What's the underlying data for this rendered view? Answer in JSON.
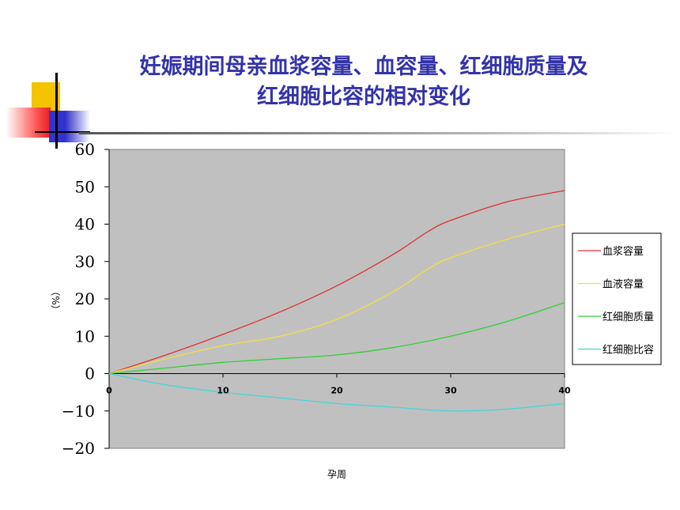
{
  "title_lines": [
    "妊娠期间母亲血浆容量、血容量、红细胞质量及",
    "红细胞比容的相对变化"
  ],
  "colors": {
    "plot_bg": "#c0c0c0",
    "title": "#3333aa"
  },
  "chart_data": {
    "type": "line",
    "title": "妊娠期间母亲血浆容量、血容量、红细胞质量及红细胞比容的相对变化",
    "xlabel": "孕周",
    "ylabel": "（%）",
    "xlim": [
      0,
      40
    ],
    "ylim": [
      -20,
      60
    ],
    "x_ticks": [
      0,
      10,
      20,
      30,
      40
    ],
    "y_ticks": [
      60,
      50,
      40,
      30,
      20,
      10,
      0,
      -10,
      -20
    ],
    "y_tick_labels": [
      "60",
      "50",
      "40",
      "30",
      "20",
      "10",
      "0",
      "−10",
      "−20"
    ],
    "legend_position": "right",
    "grid": false,
    "series": [
      {
        "name": "血浆容量",
        "color": "#e03030",
        "x": [
          0,
          5,
          10,
          15,
          20,
          25,
          28,
          30,
          35,
          40
        ],
        "y": [
          0,
          5,
          10.5,
          16.5,
          23.5,
          32,
          38,
          41,
          46,
          49
        ]
      },
      {
        "name": "血液容量",
        "color": "#f0e040",
        "x": [
          0,
          5,
          10,
          15,
          20,
          25,
          28,
          30,
          35,
          40
        ],
        "y": [
          0,
          4,
          7.5,
          10,
          14.5,
          22,
          28,
          31,
          36,
          40
        ]
      },
      {
        "name": "红细胞质量",
        "color": "#30d030",
        "x": [
          0,
          5,
          10,
          15,
          20,
          25,
          30,
          35,
          40
        ],
        "y": [
          0,
          1.5,
          3,
          4,
          5,
          7,
          10,
          14,
          19
        ]
      },
      {
        "name": "红细胞比容",
        "color": "#40d8d8",
        "x": [
          0,
          5,
          10,
          15,
          20,
          25,
          30,
          35,
          40
        ],
        "y": [
          0,
          -3,
          -5,
          -6.5,
          -8,
          -9,
          -10,
          -9.5,
          -8
        ]
      }
    ]
  }
}
